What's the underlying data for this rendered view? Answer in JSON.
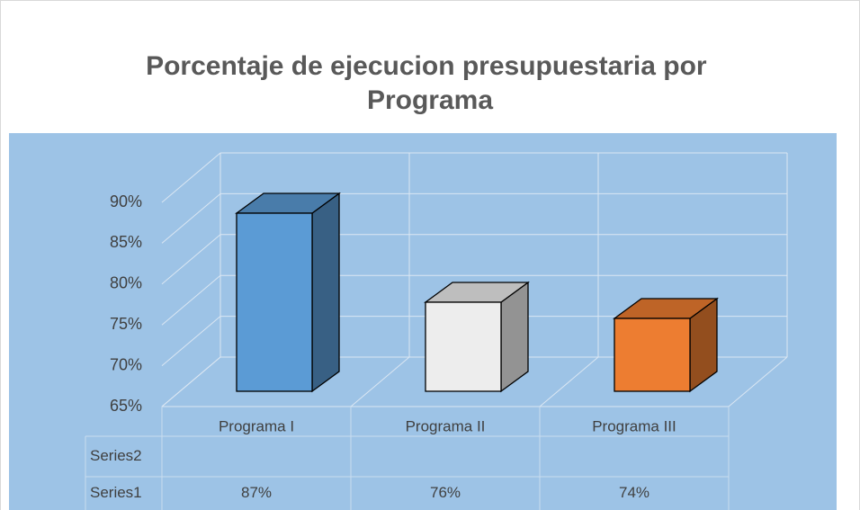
{
  "chart_data": {
    "type": "bar3d",
    "title": "Porcentaje de ejecucion presupuestaria por Programa",
    "categories": [
      "Programa I",
      "Programa II",
      "Programa III"
    ],
    "series": [
      {
        "name": "Series1",
        "values": [
          87,
          76,
          74
        ],
        "value_labels": [
          "87%",
          "76%",
          "74%"
        ],
        "colors": [
          "#5b9bd5",
          "#ededed",
          "#ed7d31"
        ]
      },
      {
        "name": "Series2",
        "values": [
          null,
          null,
          null
        ]
      }
    ],
    "ylim": [
      65,
      90
    ],
    "yticks": [
      {
        "value": 65,
        "label": "65%"
      },
      {
        "value": 70,
        "label": "70%"
      },
      {
        "value": 75,
        "label": "75%"
      },
      {
        "value": 80,
        "label": "80%"
      },
      {
        "value": 85,
        "label": "85%"
      },
      {
        "value": 90,
        "label": "90%"
      }
    ],
    "grid": true,
    "data_table": true
  }
}
